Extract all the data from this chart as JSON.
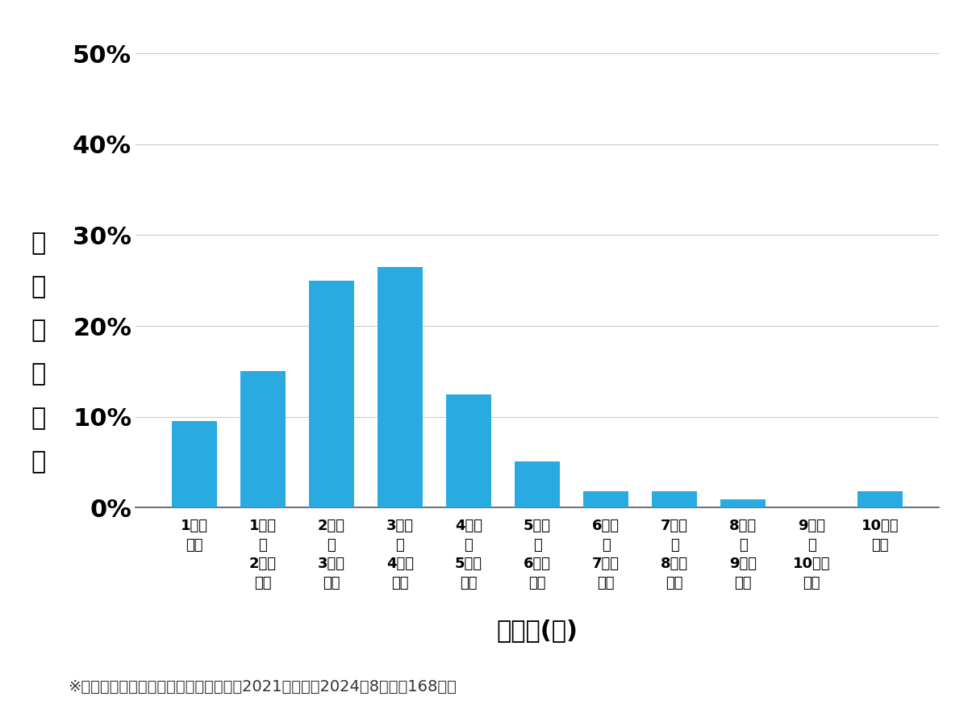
{
  "categories": [
    "1万円\n未満",
    "1万円\n～\n2万円\n未満",
    "2万円\n～\n3万円\n未満",
    "3万円\n～\n4万円\n未満",
    "4万円\n～\n5万円\n未満",
    "5万円\n～\n6万円\n未満",
    "6万円\n～\n7万円\n未満",
    "7万円\n～\n8万円\n未満",
    "8万円\n～\n9万円\n未満",
    "9万円\n～\n10万円\n未満",
    "10万円\n以上"
  ],
  "values": [
    0.095,
    0.15,
    0.25,
    0.265,
    0.125,
    0.051,
    0.018,
    0.018,
    0.009,
    0.0,
    0.018
  ],
  "bar_color": "#29ABE2",
  "xlabel": "価格帯(円)",
  "ylabel_chars": [
    "価",
    "格",
    "帯",
    "の",
    "割",
    "合"
  ],
  "yticks": [
    0.0,
    0.1,
    0.2,
    0.3,
    0.4,
    0.5
  ],
  "ytick_labels": [
    "0%",
    "10%",
    "20%",
    "30%",
    "40%",
    "50%"
  ],
  "ylim": [
    0,
    0.52
  ],
  "footnote": "※弊社受付の案件を対象に集計（期間：2021年１月～2024年8月、訜168件）",
  "background_color": "#ffffff",
  "xlabel_fontsize": 22,
  "ylabel_fontsize": 22,
  "ytick_fontsize": 22,
  "xtick_fontsize": 13,
  "footnote_fontsize": 14,
  "grid_color": "#cccccc",
  "bar_width": 0.65
}
